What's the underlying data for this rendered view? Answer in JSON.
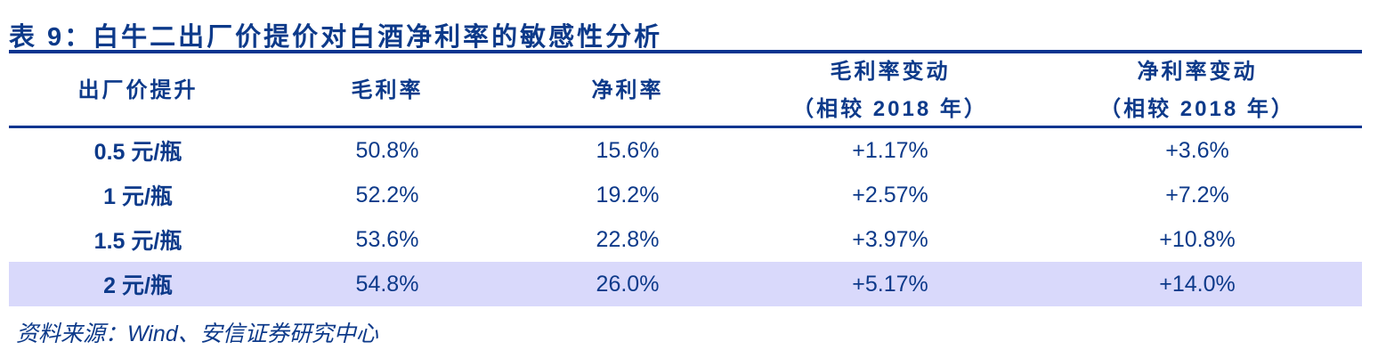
{
  "title": "表 9：白牛二出厂价提价对白酒净利率的敏感性分析",
  "table": {
    "headers": [
      {
        "line1": "出厂价提升",
        "line2": ""
      },
      {
        "line1": "毛利率",
        "line2": ""
      },
      {
        "line1": "净利率",
        "line2": ""
      },
      {
        "line1": "毛利率变动",
        "line2": "（相较 2018 年）"
      },
      {
        "line1": "净利率变动",
        "line2": "（相较 2018 年）"
      }
    ],
    "rows": [
      [
        "0.5 元/瓶",
        "50.8%",
        "15.6%",
        "+1.17%",
        "+3.6%"
      ],
      [
        "1 元/瓶",
        "52.2%",
        "19.2%",
        "+2.57%",
        "+7.2%"
      ],
      [
        "1.5 元/瓶",
        "53.6%",
        "22.8%",
        "+3.97%",
        "+10.8%"
      ],
      [
        "2 元/瓶",
        "54.8%",
        "26.0%",
        "+5.17%",
        "+14.0%"
      ]
    ],
    "highlighted_row": 3,
    "highlight_color": "#d9d9fb",
    "text_color": "#0d3a8a",
    "rule_color": "#0a3590"
  },
  "source": "资料来源：Wind、安信证券研究中心"
}
